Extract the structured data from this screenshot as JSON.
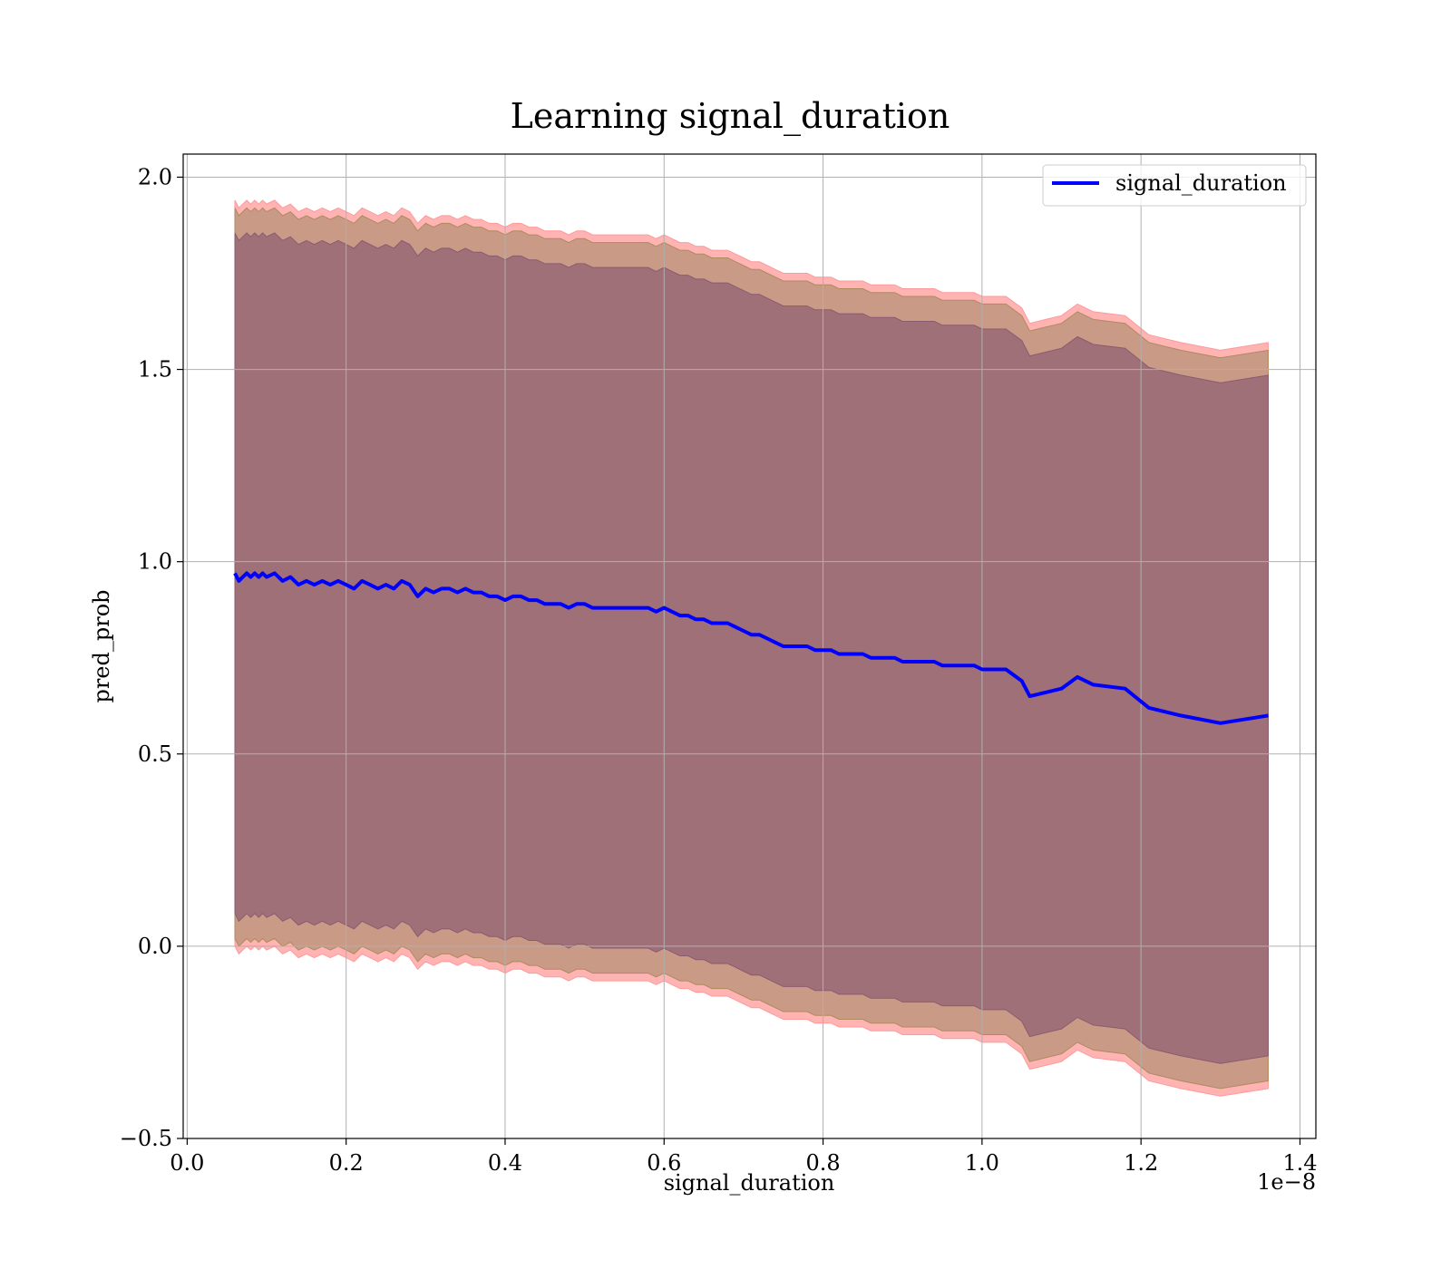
{
  "chart_data": {
    "type": "area",
    "title": "Learning signal_duration",
    "xlabel": "signal_duration",
    "ylabel": "pred_prob",
    "x_offset_label": "1e−8",
    "xlim": [
      -0.005,
      1.42
    ],
    "ylim": [
      -0.5,
      2.06
    ],
    "x_ticks": [
      0.0,
      0.2,
      0.4,
      0.6,
      0.8,
      1.0,
      1.2,
      1.4
    ],
    "x_tick_labels": [
      "0.0",
      "0.2",
      "0.4",
      "0.6",
      "0.8",
      "1.0",
      "1.2",
      "1.4"
    ],
    "y_ticks": [
      -0.5,
      0.0,
      0.5,
      1.0,
      1.5,
      2.0
    ],
    "y_tick_labels": [
      "−0.5",
      "0.0",
      "0.5",
      "1.0",
      "1.5",
      "2.0"
    ],
    "grid": true,
    "legend": {
      "placement": "top-right",
      "entries": [
        "signal_duration"
      ]
    },
    "colors": {
      "line": "#0000ff",
      "band_outer": "#ffb3b3",
      "band_middle": "#c99a86",
      "band_inner": "#a07079",
      "grid": "#b0b0b0"
    },
    "series": [
      {
        "name": "signal_duration",
        "x": [
          0.06,
          0.065,
          0.07,
          0.075,
          0.08,
          0.085,
          0.09,
          0.095,
          0.1,
          0.11,
          0.12,
          0.13,
          0.14,
          0.15,
          0.16,
          0.17,
          0.18,
          0.19,
          0.2,
          0.21,
          0.22,
          0.23,
          0.24,
          0.25,
          0.26,
          0.27,
          0.28,
          0.29,
          0.3,
          0.31,
          0.32,
          0.33,
          0.34,
          0.35,
          0.36,
          0.37,
          0.38,
          0.39,
          0.4,
          0.41,
          0.42,
          0.43,
          0.44,
          0.45,
          0.46,
          0.47,
          0.48,
          0.49,
          0.5,
          0.51,
          0.52,
          0.53,
          0.54,
          0.55,
          0.56,
          0.57,
          0.58,
          0.59,
          0.6,
          0.61,
          0.62,
          0.63,
          0.64,
          0.65,
          0.66,
          0.67,
          0.68,
          0.69,
          0.7,
          0.71,
          0.72,
          0.73,
          0.74,
          0.75,
          0.76,
          0.77,
          0.78,
          0.79,
          0.8,
          0.81,
          0.82,
          0.83,
          0.84,
          0.85,
          0.86,
          0.87,
          0.88,
          0.89,
          0.9,
          0.91,
          0.92,
          0.93,
          0.94,
          0.95,
          0.96,
          0.97,
          0.98,
          0.99,
          1.0,
          1.01,
          1.02,
          1.03,
          1.05,
          1.06,
          1.08,
          1.1,
          1.12,
          1.14,
          1.18,
          1.21,
          1.25,
          1.3,
          1.36
        ],
        "y": [
          0.97,
          0.95,
          0.96,
          0.97,
          0.96,
          0.97,
          0.96,
          0.97,
          0.96,
          0.97,
          0.95,
          0.96,
          0.94,
          0.95,
          0.94,
          0.95,
          0.94,
          0.95,
          0.94,
          0.93,
          0.95,
          0.94,
          0.93,
          0.94,
          0.93,
          0.95,
          0.94,
          0.91,
          0.93,
          0.92,
          0.93,
          0.93,
          0.92,
          0.93,
          0.92,
          0.92,
          0.91,
          0.91,
          0.9,
          0.91,
          0.91,
          0.9,
          0.9,
          0.89,
          0.89,
          0.89,
          0.88,
          0.89,
          0.89,
          0.88,
          0.88,
          0.88,
          0.88,
          0.88,
          0.88,
          0.88,
          0.88,
          0.87,
          0.88,
          0.87,
          0.86,
          0.86,
          0.85,
          0.85,
          0.84,
          0.84,
          0.84,
          0.83,
          0.82,
          0.81,
          0.81,
          0.8,
          0.79,
          0.78,
          0.78,
          0.78,
          0.78,
          0.77,
          0.77,
          0.77,
          0.76,
          0.76,
          0.76,
          0.76,
          0.75,
          0.75,
          0.75,
          0.75,
          0.74,
          0.74,
          0.74,
          0.74,
          0.74,
          0.73,
          0.73,
          0.73,
          0.73,
          0.73,
          0.72,
          0.72,
          0.72,
          0.72,
          0.69,
          0.65,
          0.66,
          0.67,
          0.7,
          0.68,
          0.67,
          0.62,
          0.6,
          0.58,
          0.6
        ]
      }
    ],
    "bands": [
      {
        "label": "outer",
        "half_width": 0.97
      },
      {
        "label": "middle",
        "half_width": 0.95
      },
      {
        "label": "inner",
        "half_width": 0.885
      }
    ]
  }
}
